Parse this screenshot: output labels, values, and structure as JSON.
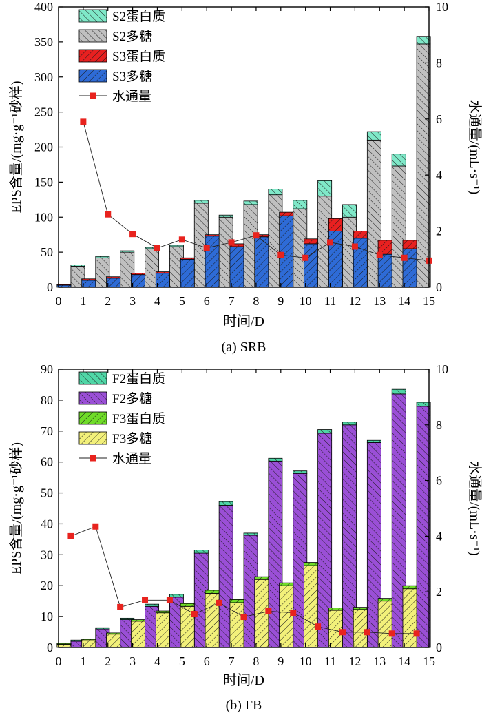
{
  "charts": [
    {
      "type": "bar",
      "caption": "(a) SRB",
      "xlabel": "时间/D",
      "ylabel": "EPS含量/(mg·g⁻¹砂样)",
      "y2label": "水通量/(mL·s⁻¹)",
      "xlim": [
        0,
        15
      ],
      "xticks": [
        "0",
        "1",
        "2",
        "3",
        "4",
        "5",
        "6",
        "7",
        "8",
        "9",
        "10",
        "11",
        "12",
        "13",
        "14",
        "15"
      ],
      "ylim": [
        0,
        400
      ],
      "yticks": [
        "0",
        "50",
        "100",
        "150",
        "200",
        "250",
        "300",
        "350",
        "400"
      ],
      "y2lim": [
        0,
        10
      ],
      "y2ticks": [
        "0",
        "2",
        "4",
        "6",
        "8",
        "10"
      ],
      "legend": [
        "S2蛋白质",
        "S2多糖",
        "S3蛋白质",
        "S3多糖",
        "水通量"
      ],
      "groups": [
        {
          "label": "S2",
          "polysaccharide": [
            30,
            42,
            50,
            55,
            58,
            120,
            100,
            118,
            132,
            112,
            130,
            100,
            210,
            173,
            347
          ],
          "protein": [
            2,
            2,
            2,
            2,
            2,
            4,
            3,
            5,
            8,
            12,
            22,
            18,
            12,
            17,
            11
          ]
        },
        {
          "label": "S3",
          "polysaccharide": [
            3,
            10,
            13,
            18,
            20,
            40,
            73,
            58,
            72,
            102,
            62,
            80,
            70,
            47,
            55
          ],
          "protein": [
            1,
            2,
            2,
            2,
            2,
            2,
            2,
            4,
            3,
            5,
            7,
            18,
            10,
            20,
            12
          ]
        }
      ],
      "flux": {
        "x": [
          1,
          2,
          3,
          4,
          5,
          6,
          7,
          8,
          9,
          10,
          11,
          12,
          13,
          14,
          15
        ],
        "y": [
          5.9,
          2.6,
          1.9,
          1.4,
          1.7,
          1.4,
          1.6,
          1.85,
          1.15,
          1.05,
          1.6,
          1.45,
          1.15,
          1.05,
          0.95
        ]
      },
      "colors": {
        "S2蛋白质": "#7fe8c8",
        "S2多糖": "#c0c0c0",
        "S3蛋白质": "#e82020",
        "S3多糖": "#2e6bd6",
        "水通量": "#e8231e"
      }
    },
    {
      "type": "bar",
      "caption": "(b) FB",
      "xlabel": "时间/D",
      "ylabel": "EPS含量/(mg·g⁻¹砂样)",
      "y2label": "水通量/(mL·s⁻¹)",
      "xlim": [
        0,
        15
      ],
      "xticks": [
        "0",
        "1",
        "2",
        "3",
        "4",
        "5",
        "6",
        "7",
        "8",
        "9",
        "10",
        "11",
        "12",
        "13",
        "14",
        "15"
      ],
      "ylim": [
        0,
        90
      ],
      "yticks": [
        "0",
        "10",
        "20",
        "30",
        "40",
        "50",
        "60",
        "70",
        "80",
        "90"
      ],
      "y2lim": [
        0,
        10
      ],
      "y2ticks": [
        "0",
        "2",
        "4",
        "6",
        "8",
        "10"
      ],
      "legend": [
        "F2蛋白质",
        "F2多糖",
        "F3蛋白质",
        "F3多糖",
        "水通量"
      ],
      "groups": [
        {
          "label": "F2",
          "polysaccharide": [
            2,
            6,
            9,
            13.3,
            16.3,
            30.5,
            46,
            36.3,
            60.3,
            56.3,
            69.3,
            72,
            66.3,
            82,
            78
          ],
          "protein": [
            0.4,
            0.4,
            0.5,
            0.7,
            0.9,
            1,
            1.2,
            0.7,
            0.9,
            0.8,
            1.2,
            0.9,
            0.7,
            1.5,
            1.3
          ]
        },
        {
          "label": "F3",
          "polysaccharide": [
            1,
            2.5,
            4.3,
            8.5,
            11.2,
            13.3,
            17.5,
            14.5,
            22,
            20,
            26.5,
            12,
            12.3,
            15,
            19
          ],
          "protein": [
            0.3,
            0.3,
            0.4,
            0.5,
            0.6,
            0.9,
            1,
            1,
            0.9,
            0.9,
            1,
            0.8,
            0.7,
            0.9,
            1
          ]
        }
      ],
      "flux": {
        "x": [
          0.5,
          1.5,
          2.5,
          3.5,
          4.5,
          5.5,
          6.5,
          7.5,
          8.5,
          9.5,
          10.5,
          11.5,
          12.5,
          13.5,
          14.5
        ],
        "y": [
          4,
          4.35,
          1.45,
          1.7,
          1.7,
          1.2,
          1.6,
          1.1,
          1.3,
          1.25,
          0.75,
          0.55,
          0.55,
          0.5,
          0.5
        ]
      },
      "colors": {
        "F2蛋白质": "#4fd6a6",
        "F2多糖": "#9a4fd6",
        "F3蛋白质": "#6fdc28",
        "F3多糖": "#f2f07a",
        "水通量": "#e8231e"
      }
    }
  ]
}
